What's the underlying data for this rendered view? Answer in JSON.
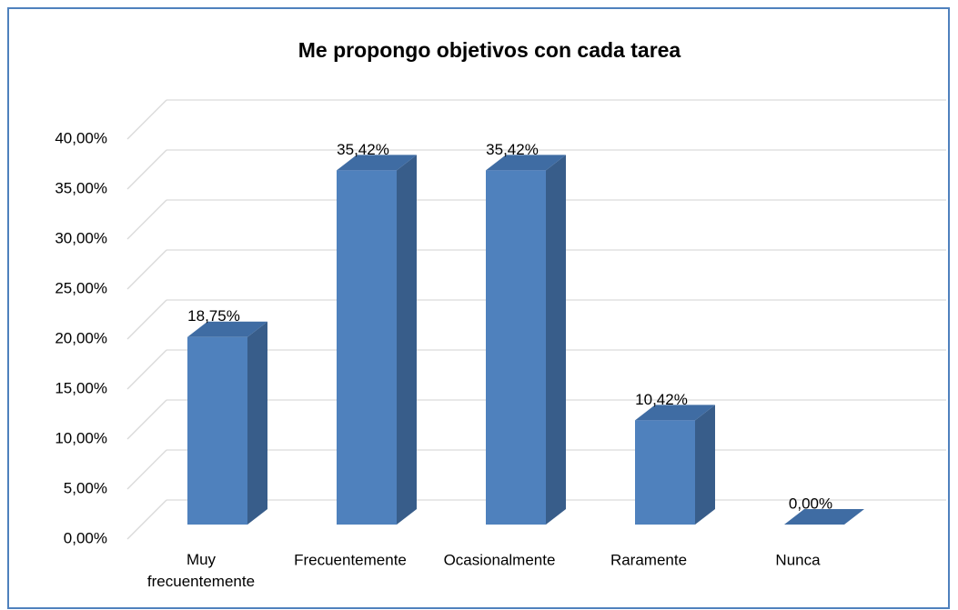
{
  "chart_data": {
    "type": "bar3d",
    "title": "Me propongo objetivos con cada tarea",
    "categories": [
      "Muy frecuentemente",
      "Frecuentemente",
      "Ocasionalmente",
      "Raramente",
      "Nunca"
    ],
    "values": [
      18.75,
      35.42,
      35.42,
      10.42,
      0
    ],
    "value_labels": [
      "18,75%",
      "35,42%",
      "35,42%",
      "10,42%",
      "0,00%"
    ],
    "color": "#4f81bd",
    "ylim": [
      0,
      40
    ],
    "yticks": [
      {
        "value": 0,
        "label": "0,00%"
      },
      {
        "value": 5,
        "label": "5,00%"
      },
      {
        "value": 10,
        "label": "10,00%"
      },
      {
        "value": 15,
        "label": "15,00%"
      },
      {
        "value": 20,
        "label": "20,00%"
      },
      {
        "value": 25,
        "label": "25,00%"
      },
      {
        "value": 30,
        "label": "30,00%"
      },
      {
        "value": 35,
        "label": "35,00%"
      },
      {
        "value": 40,
        "label": "40,00%"
      }
    ],
    "grid": true
  }
}
